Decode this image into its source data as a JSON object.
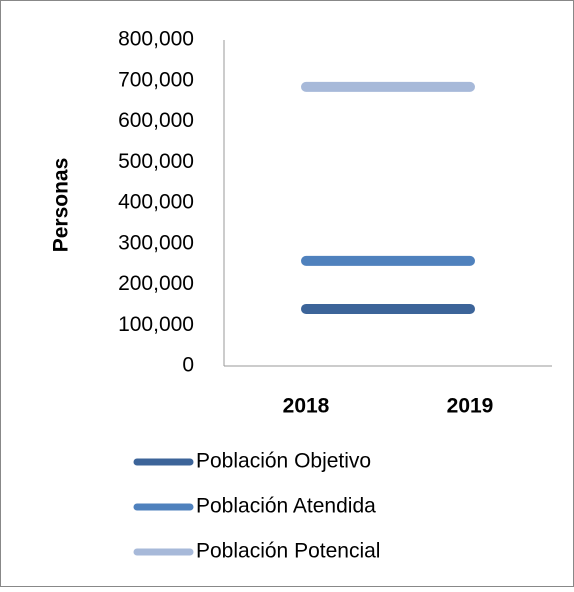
{
  "chart_data": {
    "type": "line",
    "ylabel": "Personas",
    "categories": [
      "2018",
      "2019"
    ],
    "series": [
      {
        "name": "Población Objetivo",
        "color": "#3c6499",
        "values": [
          140000,
          140000
        ]
      },
      {
        "name": "Población Atendida",
        "color": "#4f81bd",
        "values": [
          258000,
          258000
        ]
      },
      {
        "name": "Población Potencial",
        "color": "#a7b9d9",
        "values": [
          685000,
          685000
        ]
      }
    ],
    "ylim": [
      0,
      800000
    ],
    "yticks": [
      0,
      {
        "value": 100000,
        "label": "100,000"
      },
      {
        "value": 200000,
        "label": "200,000"
      },
      {
        "value": 300000,
        "label": "300,000"
      },
      {
        "value": 400000,
        "label": "400,000"
      },
      {
        "value": 500000,
        "label": "500,000"
      },
      {
        "value": 600000,
        "label": "600,000"
      },
      {
        "value": 700000,
        "label": "700,000"
      },
      {
        "value": 800000,
        "label": "800,000"
      }
    ],
    "legend": "bottom"
  }
}
